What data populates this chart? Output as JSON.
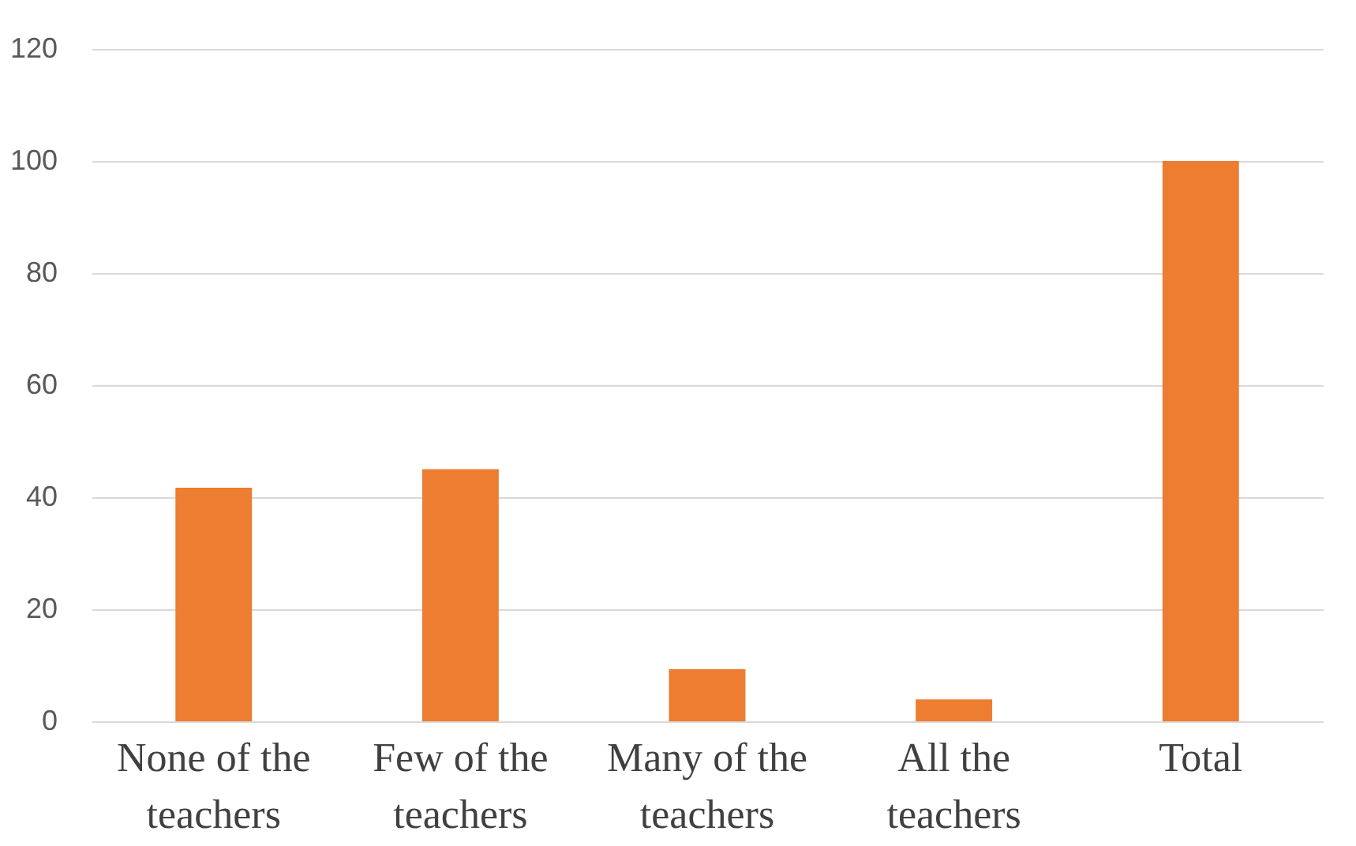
{
  "chart_data": {
    "type": "bar",
    "categories": [
      "None of the teachers",
      "Few of the teachers",
      "Many of the teachers",
      "All the teachers",
      "Total"
    ],
    "values": [
      41.7,
      45,
      9.3,
      3.9,
      100
    ],
    "color": "#ed7d31",
    "ylim": [
      0,
      120
    ],
    "yticks": [
      0,
      20,
      40,
      60,
      80,
      100,
      120
    ],
    "grid": "y"
  }
}
